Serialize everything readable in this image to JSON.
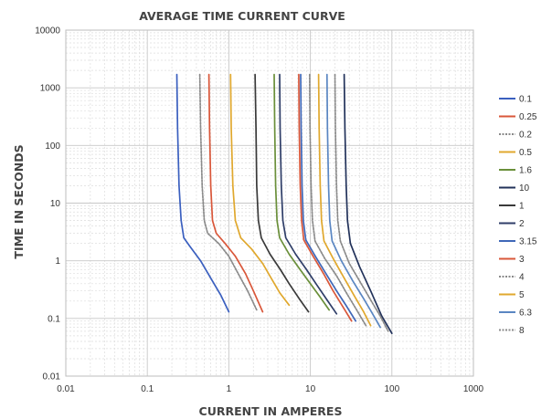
{
  "chart_data": {
    "type": "line",
    "title": "AVERAGE TIME CURRENT CURVE",
    "xlabel": "CURRENT IN AMPERES",
    "ylabel": "TIME IN SECONDS",
    "x_scale": "log",
    "y_scale": "log",
    "xlim": [
      0.01,
      1000
    ],
    "ylim": [
      0.01,
      10000
    ],
    "x_ticks": [
      "0.01",
      "0.1",
      "1",
      "10",
      "100",
      "1000"
    ],
    "y_ticks": [
      "0.01",
      "0.1",
      "1",
      "10",
      "100",
      "1000",
      "10000"
    ],
    "grid": true,
    "legend_position": "right",
    "series": [
      {
        "name": "0.1",
        "color": "#3a5fbf",
        "dashed": false,
        "points": [
          [
            0.23,
            1700
          ],
          [
            0.235,
            200
          ],
          [
            0.245,
            20
          ],
          [
            0.26,
            5
          ],
          [
            0.28,
            2.5
          ],
          [
            0.33,
            1.8
          ],
          [
            0.45,
            1.0
          ],
          [
            0.6,
            0.5
          ],
          [
            0.8,
            0.25
          ],
          [
            1.0,
            0.13
          ]
        ]
      },
      {
        "name": "0.25",
        "color": "#d9573a",
        "dashed": false,
        "points": [
          [
            0.57,
            1700
          ],
          [
            0.58,
            200
          ],
          [
            0.6,
            20
          ],
          [
            0.63,
            5
          ],
          [
            0.7,
            3
          ],
          [
            0.9,
            2
          ],
          [
            1.2,
            1.2
          ],
          [
            1.6,
            0.6
          ],
          [
            2.0,
            0.3
          ],
          [
            2.6,
            0.13
          ]
        ]
      },
      {
        "name": "0.2",
        "color": "#8a8a8a",
        "dashed": true,
        "points": [
          [
            0.44,
            1700
          ],
          [
            0.45,
            200
          ],
          [
            0.47,
            20
          ],
          [
            0.5,
            5
          ],
          [
            0.55,
            3
          ],
          [
            0.75,
            2
          ],
          [
            1.0,
            1.2
          ],
          [
            1.3,
            0.6
          ],
          [
            1.7,
            0.3
          ],
          [
            2.2,
            0.14
          ]
        ]
      },
      {
        "name": "0.5",
        "color": "#e0a82e",
        "dashed": false,
        "points": [
          [
            1.05,
            1700
          ],
          [
            1.07,
            200
          ],
          [
            1.12,
            20
          ],
          [
            1.2,
            5
          ],
          [
            1.4,
            2.5
          ],
          [
            1.9,
            1.6
          ],
          [
            2.6,
            0.9
          ],
          [
            3.3,
            0.5
          ],
          [
            4.2,
            0.28
          ],
          [
            5.5,
            0.17
          ]
        ]
      },
      {
        "name": "1.6",
        "color": "#6a8f3a",
        "dashed": false,
        "points": [
          [
            3.6,
            1700
          ],
          [
            3.65,
            200
          ],
          [
            3.75,
            20
          ],
          [
            3.9,
            5
          ],
          [
            4.2,
            2.5
          ],
          [
            5.5,
            1.3
          ],
          [
            7.5,
            0.7
          ],
          [
            10,
            0.4
          ],
          [
            13,
            0.24
          ],
          [
            17,
            0.14
          ]
        ]
      },
      {
        "name": "10",
        "color": "#22325a",
        "dashed": false,
        "points": [
          [
            26,
            1700
          ],
          [
            26.5,
            200
          ],
          [
            27.5,
            20
          ],
          [
            28.5,
            5
          ],
          [
            31,
            2
          ],
          [
            40,
            0.8
          ],
          [
            55,
            0.3
          ],
          [
            75,
            0.11
          ],
          [
            100,
            0.055
          ]
        ]
      },
      {
        "name": "1",
        "color": "#3a3a3a",
        "dashed": false,
        "points": [
          [
            2.1,
            1700
          ],
          [
            2.15,
            200
          ],
          [
            2.2,
            20
          ],
          [
            2.3,
            5
          ],
          [
            2.5,
            2.5
          ],
          [
            3.2,
            1.3
          ],
          [
            4.3,
            0.7
          ],
          [
            5.5,
            0.4
          ],
          [
            7.3,
            0.22
          ],
          [
            9.5,
            0.13
          ]
        ]
      },
      {
        "name": "2",
        "color": "#2f3e68",
        "dashed": false,
        "points": [
          [
            4.2,
            1700
          ],
          [
            4.25,
            200
          ],
          [
            4.4,
            20
          ],
          [
            4.6,
            5
          ],
          [
            5,
            2.5
          ],
          [
            6.6,
            1.3
          ],
          [
            9,
            0.7
          ],
          [
            12,
            0.38
          ],
          [
            16,
            0.21
          ],
          [
            21,
            0.12
          ]
        ]
      },
      {
        "name": "3.15",
        "color": "#3f67b8",
        "dashed": false,
        "points": [
          [
            7.6,
            1700
          ],
          [
            7.7,
            200
          ],
          [
            7.9,
            20
          ],
          [
            8.2,
            5
          ],
          [
            8.8,
            2.3
          ],
          [
            11.5,
            1.2
          ],
          [
            15.5,
            0.6
          ],
          [
            21,
            0.3
          ],
          [
            28,
            0.16
          ],
          [
            36,
            0.09
          ]
        ]
      },
      {
        "name": "3",
        "color": "#d9573a",
        "dashed": false,
        "points": [
          [
            7.2,
            1700
          ],
          [
            7.3,
            200
          ],
          [
            7.5,
            20
          ],
          [
            7.8,
            5
          ],
          [
            8.3,
            2.3
          ],
          [
            10.8,
            1.2
          ],
          [
            14.5,
            0.6
          ],
          [
            19,
            0.3
          ],
          [
            25,
            0.16
          ],
          [
            32,
            0.09
          ]
        ]
      },
      {
        "name": "4",
        "color": "#8a8a8a",
        "dashed": true,
        "points": [
          [
            9.8,
            1700
          ],
          [
            9.9,
            200
          ],
          [
            10.2,
            20
          ],
          [
            10.6,
            5
          ],
          [
            11.4,
            2.2
          ],
          [
            15,
            1.1
          ],
          [
            21,
            0.55
          ],
          [
            28,
            0.27
          ],
          [
            37,
            0.14
          ],
          [
            48,
            0.075
          ]
        ]
      },
      {
        "name": "5",
        "color": "#e0a82e",
        "dashed": false,
        "points": [
          [
            12.6,
            1700
          ],
          [
            12.8,
            200
          ],
          [
            13.2,
            20
          ],
          [
            13.7,
            5
          ],
          [
            14.7,
            2.2
          ],
          [
            19,
            1.1
          ],
          [
            26,
            0.5
          ],
          [
            35,
            0.24
          ],
          [
            45,
            0.13
          ],
          [
            55,
            0.075
          ]
        ]
      },
      {
        "name": "6.3",
        "color": "#5a86c2",
        "dashed": false,
        "points": [
          [
            16,
            1700
          ],
          [
            16.2,
            200
          ],
          [
            16.7,
            20
          ],
          [
            17.3,
            5
          ],
          [
            18.5,
            2.2
          ],
          [
            24,
            1.0
          ],
          [
            33,
            0.45
          ],
          [
            45,
            0.22
          ],
          [
            58,
            0.12
          ],
          [
            72,
            0.07
          ]
        ]
      },
      {
        "name": "8",
        "color": "#8a8a8a",
        "dashed": true,
        "points": [
          [
            20,
            1700
          ],
          [
            20.3,
            200
          ],
          [
            20.9,
            20
          ],
          [
            21.7,
            5
          ],
          [
            23.3,
            2.2
          ],
          [
            30,
            0.9
          ],
          [
            42,
            0.4
          ],
          [
            56,
            0.2
          ],
          [
            72,
            0.11
          ],
          [
            90,
            0.06
          ]
        ]
      }
    ]
  }
}
